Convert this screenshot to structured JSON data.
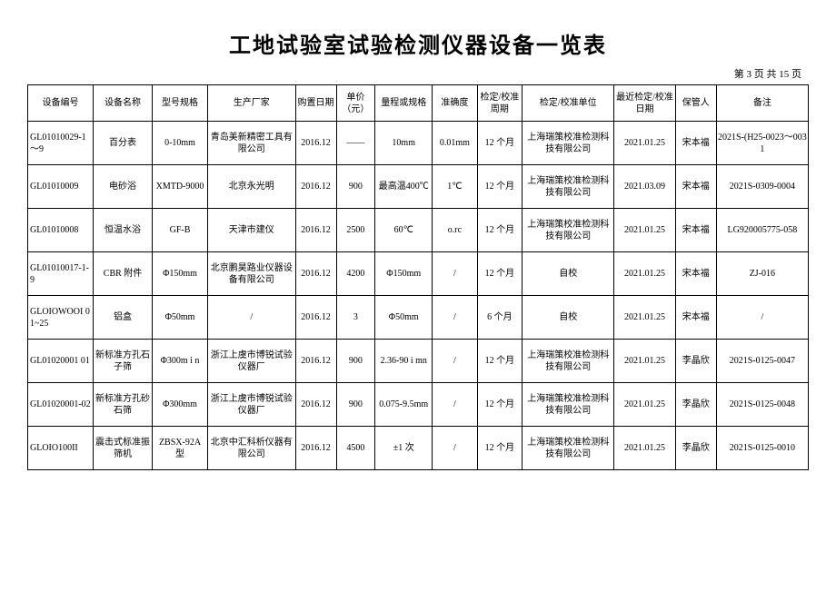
{
  "title": "工地试验室试验检测仪器设备一览表",
  "pager": "第 3 页 共 15 页",
  "columns": [
    "设备编号",
    "设备名称",
    "型号规格",
    "生产厂家",
    "购置日期",
    "单价（元）",
    "量程或规格",
    "准确度",
    "检定/校准周期",
    "检定/校准单位",
    "最近检定/校准日期",
    "保管人",
    "备注"
  ],
  "rows": [
    [
      "GL01010029-1～9",
      "百分表",
      "0-10mm",
      "青岛美新精密工具有限公司",
      "2016.12",
      "——",
      "10mm",
      "0.01mm",
      "12 个月",
      "上海瑞策校准检测科技有限公司",
      "2021.01.25",
      "宋本福",
      "2021S-(H25-0023～0031"
    ],
    [
      "GL01010009",
      "电砂浴",
      "XMTD-9000",
      "北京永光明",
      "2016.12",
      "900",
      "最高温400℃",
      "1℃",
      "12 个月",
      "上海瑞策校准检测科技有限公司",
      "2021.03.09",
      "宋本福",
      "2021S-0309-0004"
    ],
    [
      "GL01010008",
      "恒温水浴",
      "GF-B",
      "天津市建仪",
      "2016.12",
      "2500",
      "60℃",
      "o.rc",
      "12 个月",
      "上海瑞策校准检测科技有限公司",
      "2021.01.25",
      "宋本福",
      "LG920005775-058"
    ],
    [
      "GL01010017-1-9",
      "CBR 附件",
      "Φ150mm",
      "北京鹏昊路业仪器设备有限公司",
      "2016.12",
      "4200",
      "Φ150mm",
      "/",
      "12 个月",
      "自校",
      "2021.01.25",
      "宋本福",
      "ZJ-016"
    ],
    [
      "GLOIOWOOI 01~25",
      "铝盒",
      "Φ50mm",
      "/",
      "2016.12",
      "3",
      "Φ50mm",
      "/",
      "6 个月",
      "自校",
      "2021.01.25",
      "宋本福",
      "/"
    ],
    [
      "GL01020001 01",
      "新标准方孔石子筛",
      "Φ300m i n",
      "浙江上虞市博锐试验仪器厂",
      "2016.12",
      "900",
      "2.36-90 i mn",
      "/",
      "12 个月",
      "上海瑞策校准检测科技有限公司",
      "2021.01.25",
      "李晶欣",
      "2021S-0125-0047"
    ],
    [
      "GL01020001-02",
      "新标准方孔砂石筛",
      "Φ300mm",
      "浙江上虞市博锐试验仪器厂",
      "2016.12",
      "900",
      "0.075-9.5mm",
      "/",
      "12 个月",
      "上海瑞策校准检测科技有限公司",
      "2021.01.25",
      "李晶欣",
      "2021S-0125-0048"
    ],
    [
      "GLOIO100II",
      "震击式标准振筛机",
      "ZBSX-92A 型",
      "北京中汇科析仪器有限公司",
      "2016.12",
      "4500",
      "±1 次",
      "/",
      "12 个月",
      "上海瑞策校准检测科技有限公司",
      "2021.01.25",
      "李晶欣",
      "2021S-0125-0010"
    ]
  ]
}
